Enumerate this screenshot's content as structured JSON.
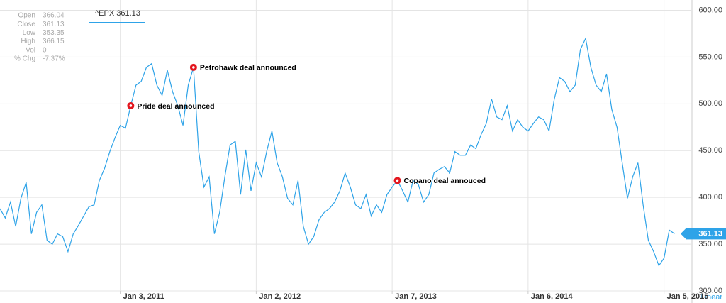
{
  "chart_data": {
    "type": "line",
    "info": [
      {
        "label": "Open",
        "value": "366.04"
      },
      {
        "label": "Close",
        "value": "361.13"
      },
      {
        "label": "Low",
        "value": "353.35"
      },
      {
        "label": "High",
        "value": "366.15"
      },
      {
        "label": "Vol",
        "value": "0"
      },
      {
        "label": "% Chg",
        "value": "-7.37%"
      }
    ],
    "categories": [
      null,
      null,
      null,
      null,
      null,
      null,
      null,
      null,
      null,
      null,
      null,
      null,
      null,
      null,
      null,
      null,
      null,
      null,
      null,
      null,
      null,
      null,
      null,
      "Jan 3, 2011",
      null,
      null,
      null,
      null,
      null,
      null,
      null,
      null,
      null,
      null,
      null,
      null,
      null,
      null,
      null,
      null,
      null,
      null,
      null,
      null,
      null,
      null,
      null,
      null,
      null,
      "Jan 2, 2012",
      null,
      null,
      null,
      null,
      null,
      null,
      null,
      null,
      null,
      null,
      null,
      null,
      null,
      null,
      null,
      null,
      null,
      null,
      null,
      null,
      null,
      null,
      null,
      null,
      null,
      "Jan 7, 2013",
      null,
      null,
      null,
      null,
      null,
      null,
      null,
      null,
      null,
      null,
      null,
      null,
      null,
      null,
      null,
      null,
      null,
      null,
      null,
      null,
      null,
      null,
      null,
      null,
      null,
      "Jan 6, 2014",
      null,
      null,
      null,
      null,
      null,
      null,
      null,
      null,
      null,
      null,
      null,
      null,
      null,
      null,
      null,
      null,
      null,
      null,
      null,
      null,
      null,
      null,
      null,
      null,
      null,
      "Jan 5, 2015",
      null,
      null
    ],
    "series": [
      {
        "name": "^EPX 361.13",
        "color": "#2ea3e8",
        "values": [
          388,
          378,
          395,
          369,
          399,
          416,
          361,
          384,
          392,
          354,
          350,
          361,
          358,
          342,
          361,
          370,
          380,
          390,
          392,
          418,
          431,
          449,
          464,
          477,
          474,
          498,
          520,
          524,
          539,
          543,
          520,
          509,
          536,
          513,
          498,
          477,
          520,
          539,
          449,
          411,
          422,
          361,
          384,
          422,
          456,
          460,
          403,
          451,
          407,
          437,
          422,
          449,
          471,
          437,
          422,
          399,
          392,
          418,
          369,
          350,
          358,
          376,
          384,
          388,
          395,
          407,
          426,
          411,
          392,
          388,
          403,
          380,
          392,
          384,
          403,
          411,
          418,
          407,
          395,
          418,
          414,
          395,
          403,
          426,
          430,
          433,
          426,
          449,
          445,
          445,
          456,
          452,
          467,
          479,
          505,
          486,
          483,
          498,
          471,
          483,
          475,
          471,
          479,
          486,
          483,
          471,
          505,
          528,
          524,
          513,
          520,
          558,
          570,
          539,
          520,
          513,
          532,
          494,
          475,
          437,
          399,
          422,
          437,
          392,
          354,
          342,
          327,
          335,
          365,
          361.13
        ]
      }
    ],
    "annotations": [
      "Pride deal announced",
      "Petrohawk deal announced",
      "Copano deal annouced"
    ],
    "ylim": [
      300,
      611
    ],
    "yticks": [
      {
        "value": 300,
        "label": "300.00"
      },
      {
        "value": 350,
        "label": "350.00"
      },
      {
        "value": 400,
        "label": "400.00"
      },
      {
        "value": 450,
        "label": "450.00"
      },
      {
        "value": 500,
        "label": "500.00"
      },
      {
        "value": 550,
        "label": "550.00"
      },
      {
        "value": 600,
        "label": "600.00"
      }
    ],
    "scale_label": "Linear",
    "grid": true
  }
}
